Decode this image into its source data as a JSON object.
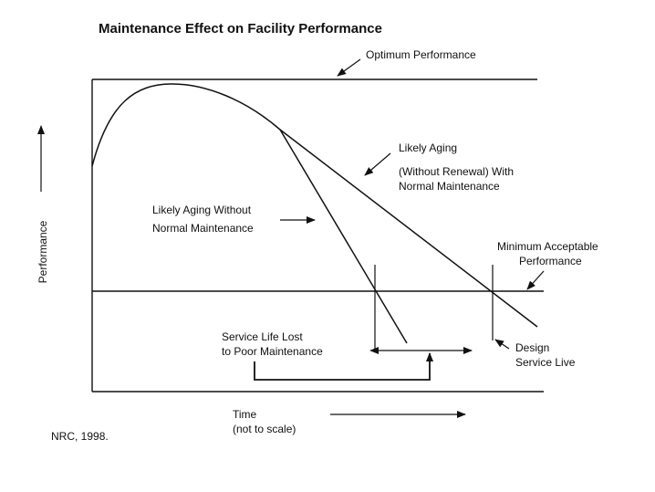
{
  "chart_data": {
    "type": "line",
    "title": "Maintenance Effect on Facility Performance",
    "xlabel": "Time",
    "xlabel_note": "(not to scale)",
    "ylabel": "Performance",
    "source": "NRC, 1998.",
    "annotations": {
      "optimum": "Optimum Performance",
      "likely_aging_line1": "Likely Aging",
      "likely_aging_line2": "(Without Renewal) With",
      "likely_aging_line3": "Normal Maintenance",
      "without_line1": "Likely Aging Without",
      "without_line2": "Normal Maintenance",
      "minimum_line1": "Minimum Acceptable",
      "minimum_line2": "Performance",
      "lost_line1": "Service Life  Lost",
      "lost_line2": "to Poor Maintenance",
      "design_line1": "Design",
      "design_line2": "Service Live"
    },
    "grid": false,
    "legend": "none"
  }
}
